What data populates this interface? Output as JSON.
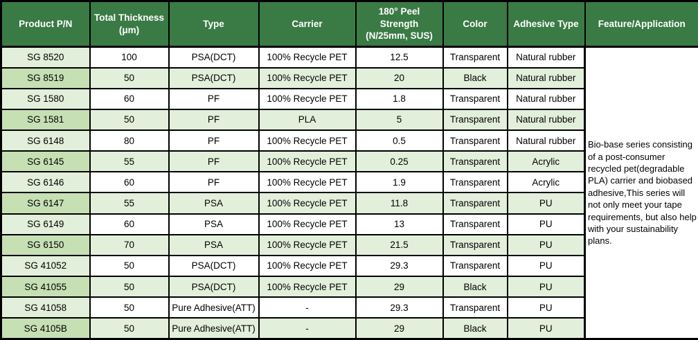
{
  "table": {
    "columns": [
      "Product P/N",
      "Total Thickness\n(μm)",
      "Type",
      "Carrier",
      "180° Peel\nStrength\n(N/25mm, SUS)",
      "Color",
      "Adhesive Type",
      "Feature/Application"
    ],
    "rows": [
      {
        "pn": "SG 8520",
        "thickness": "100",
        "type": "PSA(DCT)",
        "carrier": "100% Recycle PET",
        "peel": "12.5",
        "color": "Transparent",
        "adhesive": "Natural rubber"
      },
      {
        "pn": "SG 8519",
        "thickness": "50",
        "type": "PSA(DCT)",
        "carrier": "100% Recycle PET",
        "peel": "20",
        "color": "Black",
        "adhesive": "Natural rubber"
      },
      {
        "pn": "SG 1580",
        "thickness": "60",
        "type": "PF",
        "carrier": "100% Recycle PET",
        "peel": "1.8",
        "color": "Transparent",
        "adhesive": "Natural rubber"
      },
      {
        "pn": "SG 1581",
        "thickness": "50",
        "type": "PF",
        "carrier": "PLA",
        "peel": "5",
        "color": "Transparent",
        "adhesive": "Natural rubber"
      },
      {
        "pn": "SG 6148",
        "thickness": "80",
        "type": "PF",
        "carrier": "100% Recycle PET",
        "peel": "0.5",
        "color": "Transparent",
        "adhesive": "Natural rubber"
      },
      {
        "pn": "SG 6145",
        "thickness": "55",
        "type": "PF",
        "carrier": "100% Recycle PET",
        "peel": "0.25",
        "color": "Transparent",
        "adhesive": "Acrylic"
      },
      {
        "pn": "SG 6146",
        "thickness": "60",
        "type": "PF",
        "carrier": "100% Recycle PET",
        "peel": "1.9",
        "color": "Transparent",
        "adhesive": "Acrylic"
      },
      {
        "pn": "SG 6147",
        "thickness": "55",
        "type": "PSA",
        "carrier": "100% Recycle PET",
        "peel": "11.8",
        "color": "Transparent",
        "adhesive": "PU"
      },
      {
        "pn": "SG 6149",
        "thickness": "60",
        "type": "PSA",
        "carrier": "100% Recycle PET",
        "peel": "13",
        "color": "Transparent",
        "adhesive": "PU"
      },
      {
        "pn": "SG 6150",
        "thickness": "70",
        "type": "PSA",
        "carrier": "100% Recycle PET",
        "peel": "21.5",
        "color": "Transparent",
        "adhesive": "PU"
      },
      {
        "pn": "SG 41052",
        "thickness": "50",
        "type": "PSA(DCT)",
        "carrier": "100% Recycle PET",
        "peel": "29.3",
        "color": "Transparent",
        "adhesive": "PU"
      },
      {
        "pn": "SG 41055",
        "thickness": "50",
        "type": "PSA(DCT)",
        "carrier": "100% Recycle PET",
        "peel": "29",
        "color": "Black",
        "adhesive": "PU"
      },
      {
        "pn": "SG 41058",
        "thickness": "50",
        "type": "Pure Adhesive(ATT)",
        "carrier": "-",
        "peel": "29.3",
        "color": "Transparent",
        "adhesive": "PU"
      },
      {
        "pn": "SG 4105B",
        "thickness": "50",
        "type": "Pure Adhesive(ATT)",
        "carrier": "-",
        "peel": "29",
        "color": "Black",
        "adhesive": "PU"
      }
    ],
    "feature_text": "Bio-base series consisting of a post-consumer recycled pet(degradable PLA) carrier and  biobased adhesive,This series will not only meet your tape requirements, but also help with your sustainability plans."
  },
  "colors": {
    "header_bg": "#3A7A45",
    "header_text": "#FFFFFF",
    "row_alt_bg": "#E2EFDA",
    "pn_odd_bg": "#E2EFDA",
    "pn_even_bg": "#C6E0B4",
    "border": "#000000"
  }
}
